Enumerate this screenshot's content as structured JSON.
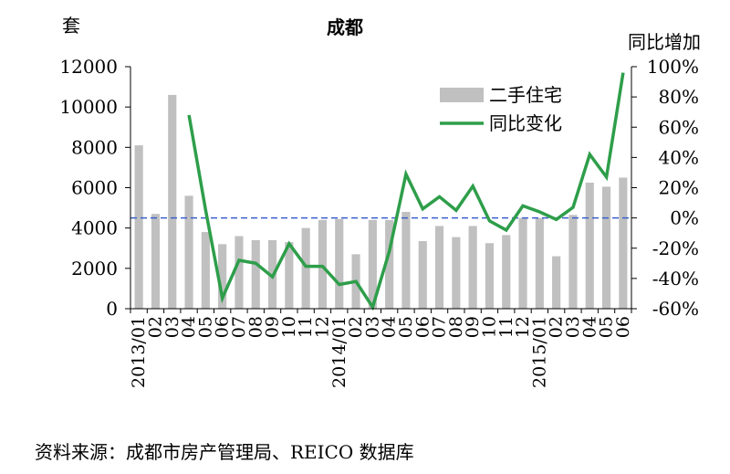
{
  "chart_data": {
    "type": "bar+line",
    "title": "成都",
    "y_left_unit": "套",
    "y_right_label": "同比增加",
    "y_left_range": [
      0,
      12000
    ],
    "y_left_ticks": [
      "12000",
      "10000",
      "8000",
      "6000",
      "4000",
      "2000",
      "0"
    ],
    "y_right_range": [
      -0.6,
      1.0
    ],
    "y_right_ticks": [
      "100%",
      "80%",
      "60%",
      "40%",
      "20%",
      "0%",
      "-20%",
      "-40%",
      "-60%"
    ],
    "x_tick_labels": [
      "2013/01",
      "02",
      "03",
      "04",
      "05",
      "06",
      "07",
      "08",
      "09",
      "10",
      "11",
      "12",
      "2014/01",
      "02",
      "03",
      "04",
      "05",
      "06",
      "07",
      "08",
      "09",
      "10",
      "11",
      "12",
      "2015/01",
      "02",
      "03",
      "04",
      "05",
      "06"
    ],
    "series": [
      {
        "name": "二手住宅",
        "type": "bar",
        "axis": "left",
        "color": "#c0c0c0",
        "values": [
          8100,
          4700,
          10600,
          5600,
          3800,
          3200,
          3600,
          3400,
          3400,
          3300,
          4000,
          4400,
          4450,
          2700,
          4400,
          4400,
          4800,
          3350,
          4100,
          3550,
          4100,
          3250,
          3650,
          4500,
          4500,
          2600,
          4650,
          6250,
          6050,
          6500
        ]
      },
      {
        "name": "同比变化",
        "type": "line",
        "axis": "right",
        "color": "#2e9e4a",
        "values": [
          null,
          null,
          null,
          0.68,
          0.05,
          -0.53,
          -0.28,
          -0.3,
          -0.39,
          -0.17,
          -0.32,
          -0.32,
          -0.44,
          -0.42,
          -0.59,
          -0.22,
          0.29,
          0.06,
          0.14,
          0.05,
          0.21,
          -0.02,
          -0.08,
          0.08,
          0.04,
          -0.01,
          0.07,
          0.42,
          0.27,
          0.96
        ]
      }
    ],
    "reference_line": {
      "value": 0,
      "axis": "right",
      "style": "dashed",
      "color": "#3a5fcd"
    },
    "legend_position": "top-right",
    "grid": false
  },
  "source": "资料来源：成都市房产管理局、REICO 数据库"
}
